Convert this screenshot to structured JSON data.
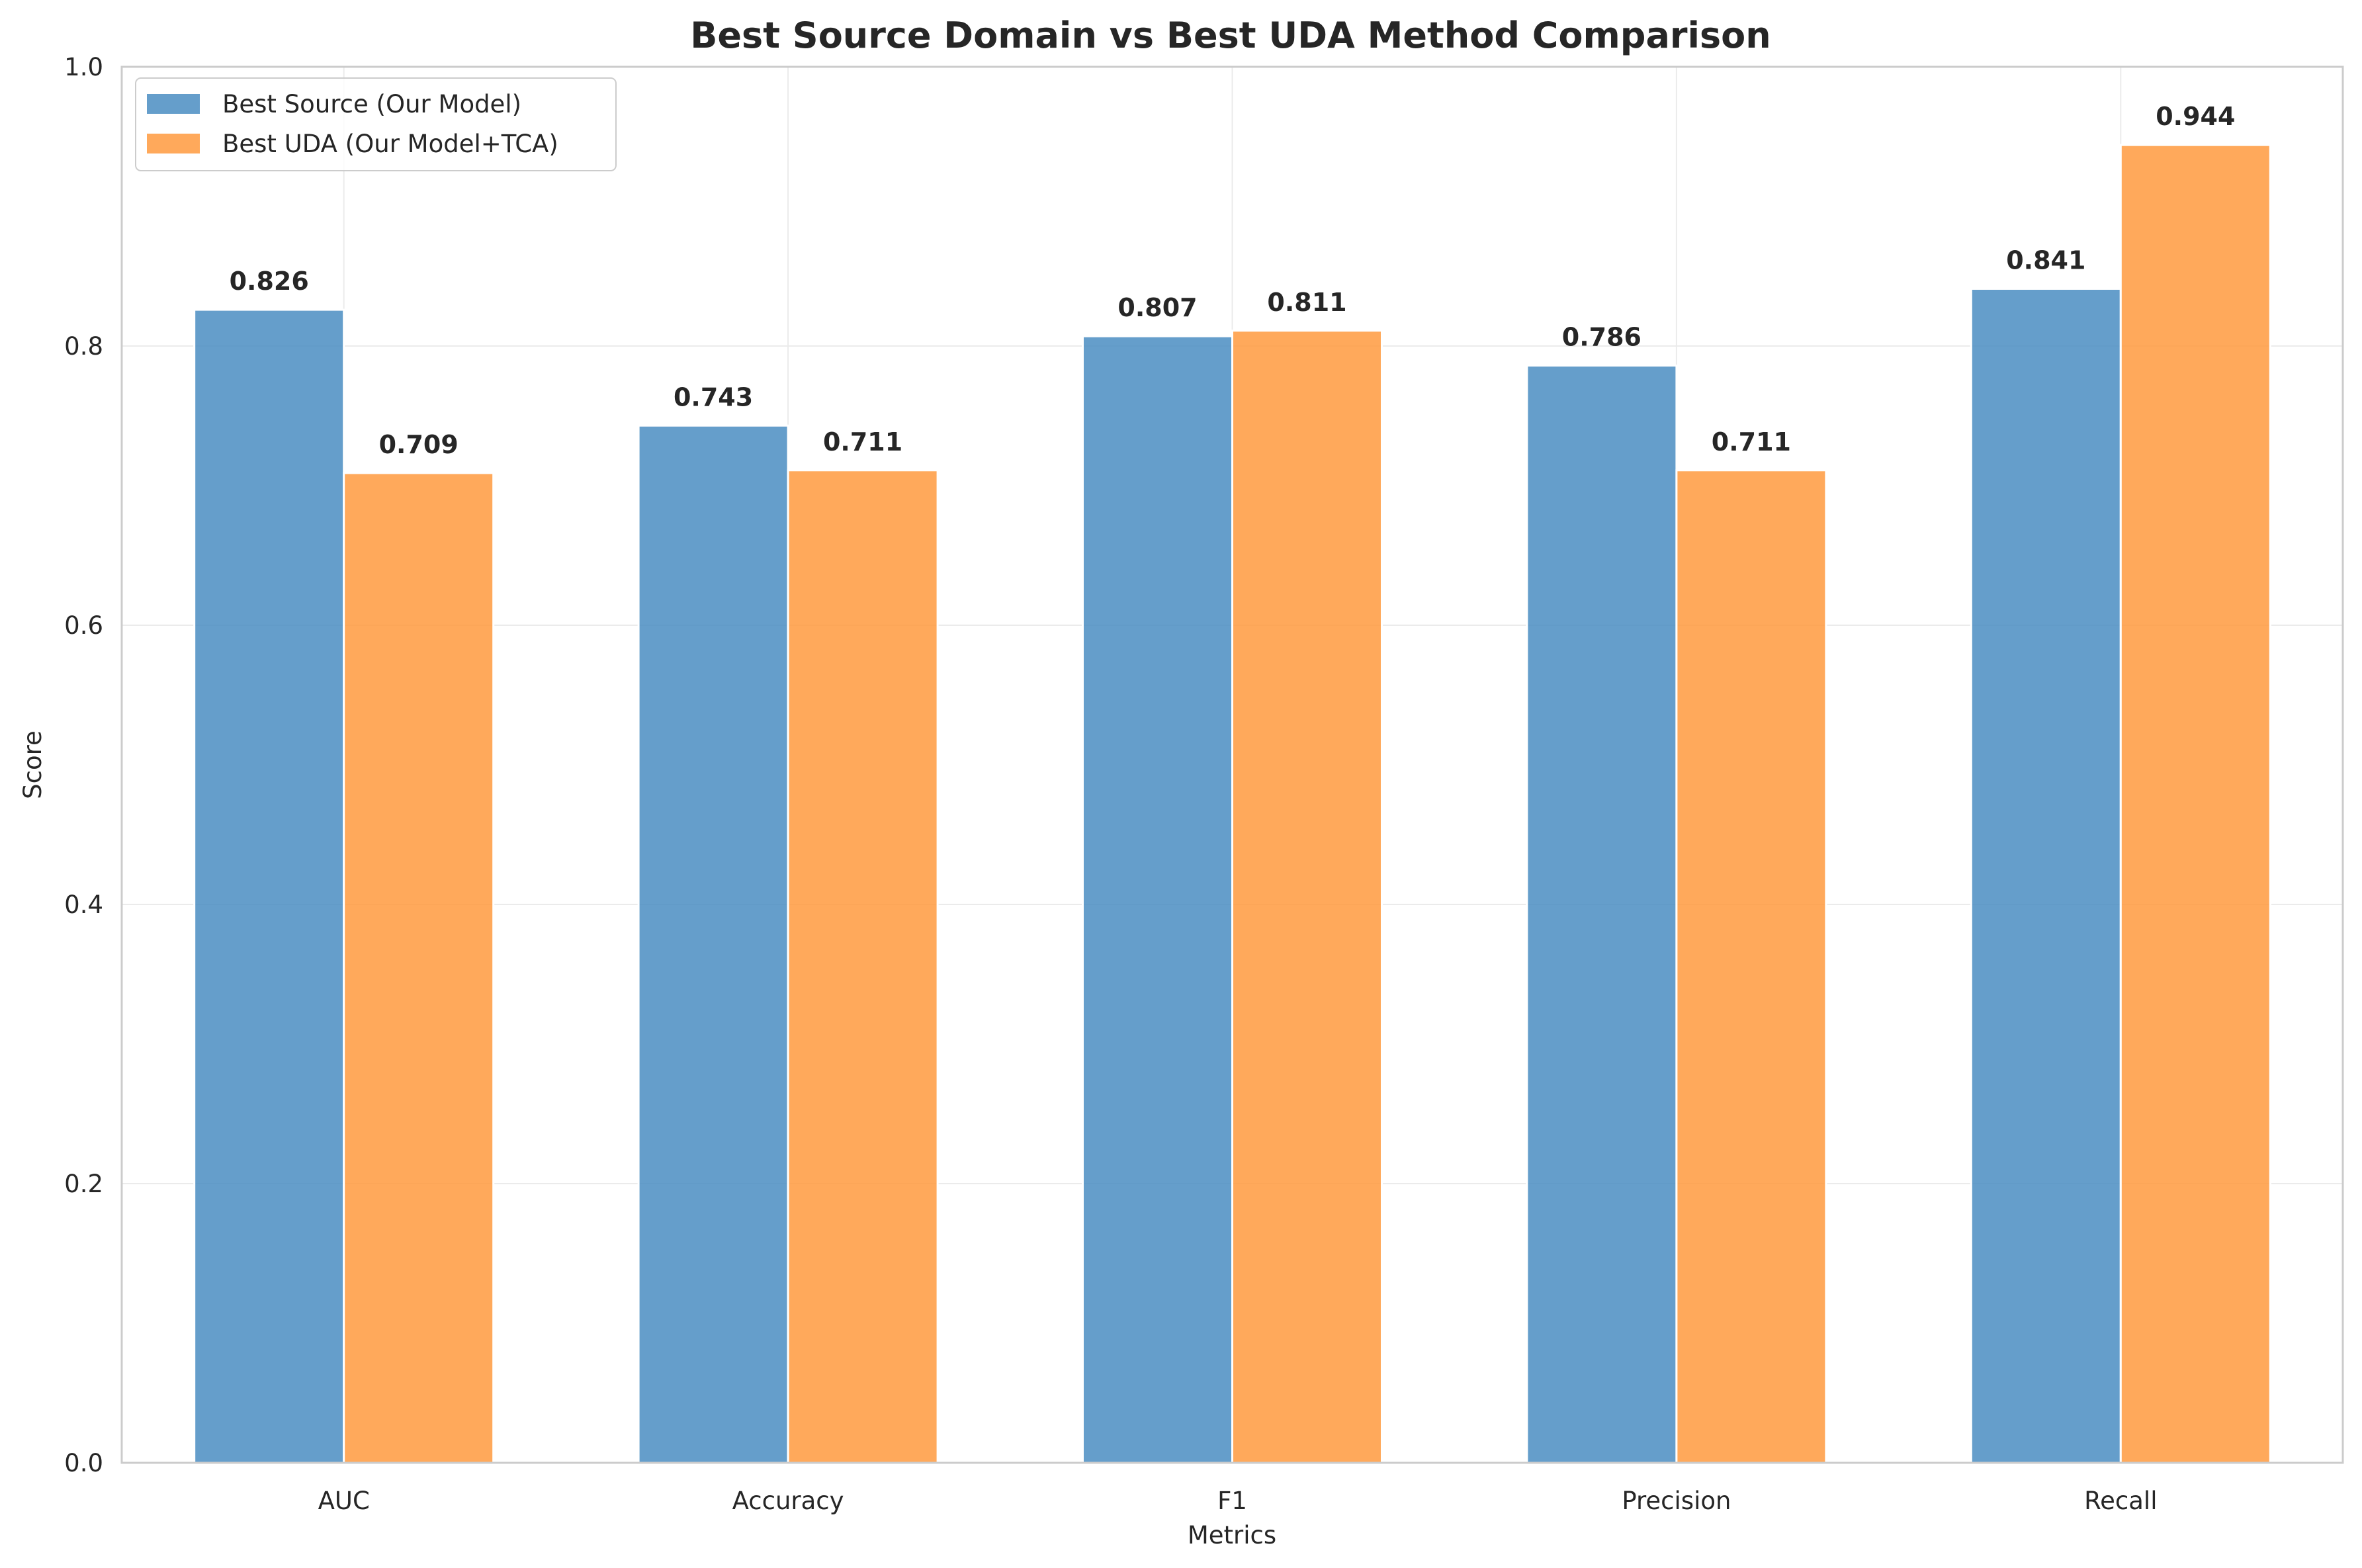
{
  "chart_data": {
    "type": "bar",
    "title": "Best Source Domain vs Best UDA Method Comparison",
    "xlabel": "Metrics",
    "ylabel": "Score",
    "ylim": [
      0,
      1.0
    ],
    "yticks": [
      "0.0",
      "0.2",
      "0.4",
      "0.6",
      "0.8",
      "1.0"
    ],
    "categories": [
      "AUC",
      "Accuracy",
      "F1",
      "Precision",
      "Recall"
    ],
    "series": [
      {
        "name": "Best Source (Our Model)",
        "values": [
          0.826,
          0.743,
          0.807,
          0.786,
          0.841
        ],
        "color": "#4a8dc2"
      },
      {
        "name": "Best UDA (Our Model+TCA)",
        "values": [
          0.709,
          0.711,
          0.811,
          0.711,
          0.944
        ],
        "color": "#ff9a3e"
      }
    ],
    "value_labels": [
      [
        "0.826",
        "0.743",
        "0.807",
        "0.786",
        "0.841"
      ],
      [
        "0.709",
        "0.711",
        "0.811",
        "0.711",
        "0.944"
      ]
    ],
    "grid": true,
    "legend_position": "top-left"
  }
}
